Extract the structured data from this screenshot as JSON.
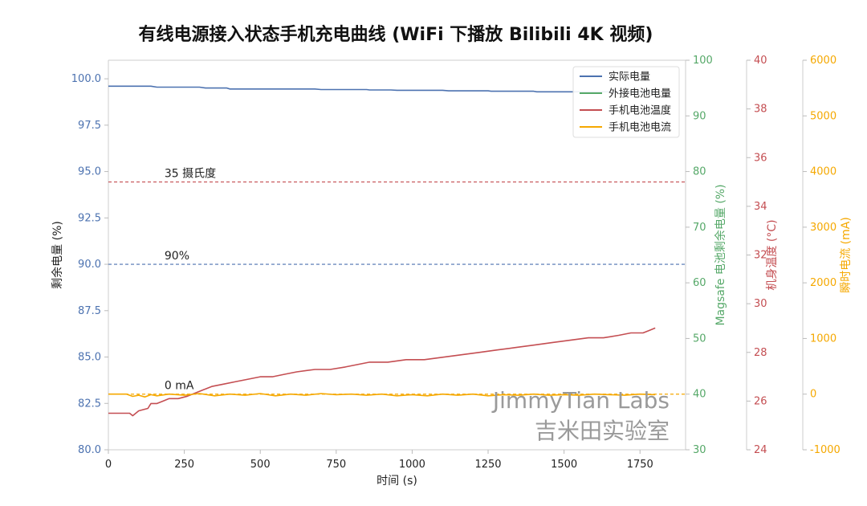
{
  "chart_data": {
    "type": "line",
    "title": "有线电源接入状态手机充电曲线 (WiFi 下播放 Bilibili 4K 视频)",
    "xlabel": "时间 (s)",
    "xlim": [
      0,
      1900
    ],
    "xticks": [
      0,
      250,
      500,
      750,
      1000,
      1250,
      1500,
      1750
    ],
    "xtick_labels": [
      "0",
      "250",
      "500",
      "750",
      "1000",
      "1250",
      "1500",
      "1750"
    ],
    "axes": {
      "y1": {
        "label": "剩余电量 (%)",
        "ylim": [
          80,
          101
        ],
        "ticks": [
          80,
          82.5,
          85,
          87.5,
          90,
          92.5,
          95,
          97.5,
          100
        ],
        "tick_labels": [
          "80.0",
          "82.5",
          "85.0",
          "87.5",
          "90.0",
          "92.5",
          "95.0",
          "97.5",
          "100.0"
        ],
        "color": "#4c72b0"
      },
      "y2": {
        "label": "Magsafe 电池剩余电量 (%)",
        "ylim": [
          30,
          100
        ],
        "ticks": [
          30,
          40,
          50,
          60,
          70,
          80,
          90,
          100
        ],
        "tick_labels": [
          "30",
          "40",
          "50",
          "60",
          "70",
          "80",
          "90",
          "100"
        ],
        "color": "#55a868"
      },
      "y3": {
        "label": "机身温度 (°C)",
        "ylim": [
          24,
          40
        ],
        "ticks": [
          24,
          26,
          28,
          30,
          32,
          34,
          36,
          38,
          40
        ],
        "tick_labels": [
          "24",
          "26",
          "28",
          "30",
          "32",
          "34",
          "36",
          "38",
          "40"
        ],
        "color": "#c44e52"
      },
      "y4": {
        "label": "瞬时电流 (mA)",
        "ylim": [
          -1000,
          6000
        ],
        "ticks": [
          -1000,
          0,
          1000,
          2000,
          3000,
          4000,
          5000,
          6000
        ],
        "tick_labels": [
          "-1000",
          "0",
          "1000",
          "2000",
          "3000",
          "4000",
          "5000",
          "6000"
        ],
        "color": "#f5a800"
      }
    },
    "series": [
      {
        "name": "实际电量",
        "axis": "y1",
        "color": "#4c72b0",
        "x": [
          0,
          140,
          160,
          300,
          320,
          390,
          400,
          680,
          700,
          850,
          860,
          930,
          950,
          1100,
          1120,
          1250,
          1260,
          1400,
          1410,
          1800
        ],
        "y": [
          99.6,
          99.6,
          99.55,
          99.55,
          99.5,
          99.5,
          99.45,
          99.45,
          99.42,
          99.42,
          99.4,
          99.4,
          99.38,
          99.38,
          99.35,
          99.35,
          99.33,
          99.33,
          99.3,
          99.3
        ]
      },
      {
        "name": "外接电池电量",
        "axis": "y2",
        "color": "#55a868",
        "x": [],
        "y": []
      },
      {
        "name": "手机电池温度",
        "axis": "y3",
        "color": "#c44e52",
        "x": [
          0,
          70,
          80,
          100,
          130,
          140,
          160,
          180,
          200,
          230,
          260,
          280,
          300,
          320,
          340,
          380,
          420,
          460,
          500,
          540,
          580,
          620,
          680,
          730,
          780,
          820,
          860,
          920,
          980,
          1040,
          1100,
          1160,
          1220,
          1280,
          1340,
          1400,
          1460,
          1520,
          1580,
          1630,
          1680,
          1720,
          1760,
          1780,
          1800
        ],
        "y": [
          25.5,
          25.5,
          25.4,
          25.6,
          25.7,
          25.9,
          25.9,
          26.0,
          26.1,
          26.1,
          26.2,
          26.3,
          26.4,
          26.5,
          26.6,
          26.7,
          26.8,
          26.9,
          27.0,
          27.0,
          27.1,
          27.2,
          27.3,
          27.3,
          27.4,
          27.5,
          27.6,
          27.6,
          27.7,
          27.7,
          27.8,
          27.9,
          28.0,
          28.1,
          28.2,
          28.3,
          28.4,
          28.5,
          28.6,
          28.6,
          28.7,
          28.8,
          28.8,
          28.9,
          29.0
        ]
      },
      {
        "name": "手机电池电流",
        "axis": "y4",
        "color": "#f5a800",
        "x": [
          0,
          60,
          80,
          100,
          120,
          140,
          160,
          200,
          250,
          300,
          350,
          400,
          450,
          500,
          550,
          600,
          650,
          700,
          750,
          800,
          850,
          900,
          950,
          1000,
          1050,
          1100,
          1150,
          1200,
          1250,
          1300,
          1350,
          1400,
          1450,
          1500,
          1550,
          1600,
          1650,
          1700,
          1750,
          1800
        ],
        "y": [
          0,
          0,
          -40,
          -20,
          -50,
          -10,
          -30,
          0,
          -20,
          10,
          -30,
          0,
          -20,
          10,
          -30,
          0,
          -20,
          10,
          -10,
          0,
          -20,
          0,
          -30,
          -10,
          -30,
          0,
          -20,
          0,
          -30,
          -10,
          -20,
          0,
          -20,
          -10,
          -20,
          0,
          -10,
          -20,
          0,
          -10
        ]
      }
    ],
    "reference_lines": [
      {
        "axis": "y1",
        "value": 90,
        "label": "90%",
        "color": "#4c72b0"
      },
      {
        "axis": "y3",
        "value": 35,
        "label": "35 摄氏度",
        "color": "#c44e52"
      },
      {
        "axis": "y4",
        "value": 0,
        "label": "0 mA",
        "color": "#f5a800"
      }
    ],
    "legend": {
      "placement": "top-right",
      "entries": [
        "实际电量",
        "外接电池电量",
        "手机电池温度",
        "手机电池电流"
      ]
    },
    "grid": false,
    "watermark": {
      "line1": "JimmyTian Labs",
      "line2": "吉米田实验室"
    }
  }
}
